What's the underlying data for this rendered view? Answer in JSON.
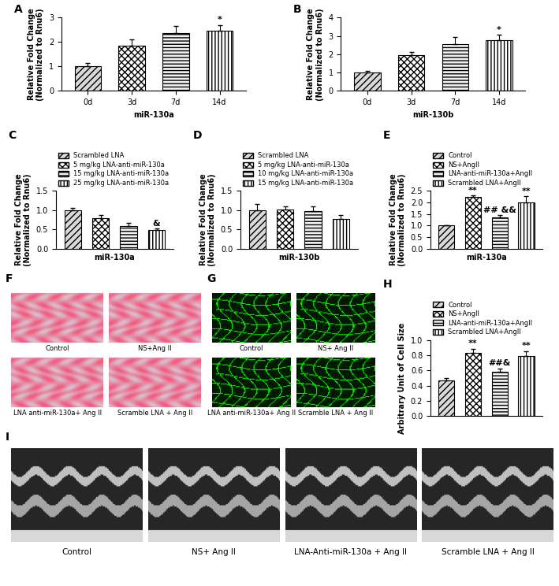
{
  "chart_data": [
    {
      "panel": "A",
      "type": "bar",
      "categories": [
        "0d",
        "3d",
        "7d",
        "14d"
      ],
      "values": [
        1.0,
        1.85,
        2.35,
        2.45
      ],
      "errors": [
        0.15,
        0.25,
        0.3,
        0.25
      ],
      "annotations": [
        null,
        null,
        null,
        "*"
      ],
      "xlabel": "miR-130a",
      "ylabel": "Relative Fold Change\n(Normalized to Rnu6)",
      "ylim": [
        0,
        3
      ],
      "yticks": [
        0,
        1,
        2,
        3
      ]
    },
    {
      "panel": "B",
      "type": "bar",
      "categories": [
        "0d",
        "3d",
        "7d",
        "14d"
      ],
      "values": [
        1.0,
        1.95,
        2.55,
        2.75
      ],
      "errors": [
        0.08,
        0.15,
        0.4,
        0.3
      ],
      "annotations": [
        null,
        null,
        null,
        "*"
      ],
      "xlabel": "miR-130b",
      "ylabel": "Relative Fold Change\n(Normalized to Rnu6)",
      "ylim": [
        0,
        4
      ],
      "yticks": [
        0,
        1,
        2,
        3,
        4
      ]
    },
    {
      "panel": "C",
      "type": "bar",
      "categories": [
        "Scrambled LNA",
        "5 mg/kg LNA-anti-miR-130a",
        "15 mg/kg LNA-anti-miR-130a",
        "25 mg/kg LNA-anti-miR-130a"
      ],
      "values": [
        1.0,
        0.8,
        0.58,
        0.48
      ],
      "errors": [
        0.05,
        0.08,
        0.08,
        0.04
      ],
      "annotations": [
        null,
        null,
        null,
        "&"
      ],
      "xlabel": "miR-130a",
      "ylabel": "Relative Fold Change\n(Normalized to Rnu6)",
      "ylim": [
        0,
        1.5
      ],
      "yticks": [
        {
          "value": 0,
          "label": "0.0"
        },
        {
          "value": 0.5,
          "label": "0.5"
        },
        {
          "value": 1.0,
          "label": "1.0"
        },
        {
          "value": 1.5,
          "label": "1.5"
        }
      ],
      "tick_labels": "y",
      "legend": "lower left"
    },
    {
      "panel": "D",
      "type": "bar",
      "categories": [
        "Scrambled LNA",
        "5 mg/kg LNA-anti-miR-130a",
        "10 mg/kg LNA-anti-miR-130a",
        "15 mg/kg LNA-anti-miR-130a"
      ],
      "values": [
        1.0,
        1.02,
        0.98,
        0.78
      ],
      "errors": [
        0.15,
        0.08,
        0.12,
        0.1
      ],
      "annotations": [
        null,
        null,
        null,
        null
      ],
      "xlabel": "miR-130b",
      "ylabel": "Relative Fold Change\n(Normalized to Rnu6)",
      "ylim": [
        0,
        1.5
      ],
      "yticks": [
        {
          "value": 0,
          "label": "0.0"
        },
        {
          "value": 0.5,
          "label": "0.5"
        },
        {
          "value": 1.0,
          "label": "1.0"
        },
        {
          "value": 1.5,
          "label": "1.5"
        }
      ],
      "tick_labels": "y",
      "legend": "lower left"
    },
    {
      "panel": "E",
      "type": "bar",
      "categories": [
        "Control",
        "NS+AngII",
        "LNA-anti-miR-130a+AngII",
        "Scrambled LNA+AngII"
      ],
      "values": [
        1.0,
        2.22,
        1.35,
        2.0
      ],
      "errors": [
        0.03,
        0.06,
        0.1,
        0.25
      ],
      "annotations": [
        null,
        "**",
        "## &&",
        "**"
      ],
      "xlabel": "miR-130a",
      "ylabel": "Relative Fold Change\n(Normalized to Rnu6)",
      "ylim": [
        0,
        2.5
      ],
      "yticks": [
        {
          "value": 0,
          "label": "0.0"
        },
        {
          "value": 0.5,
          "label": "0.5"
        },
        {
          "value": 1.0,
          "label": "1.0"
        },
        {
          "value": 1.5,
          "label": "1.5"
        },
        {
          "value": 2.0,
          "label": "2.0"
        },
        {
          "value": 2.5,
          "label": "2.5"
        }
      ],
      "tick_labels": "y",
      "legend": "lower left"
    },
    {
      "panel": "H",
      "type": "bar",
      "categories": [
        "Control",
        "NS+AngII",
        "LNA-anti-miR-130a+AngII",
        "Scrambled LNA+AngII"
      ],
      "values": [
        0.47,
        0.83,
        0.58,
        0.79
      ],
      "errors": [
        0.03,
        0.05,
        0.04,
        0.06
      ],
      "annotations": [
        null,
        "**",
        "##&",
        "**"
      ],
      "ylabel": "Arbitrary Unit of Cell Size",
      "ylim": [
        0,
        1.0
      ],
      "yticks": [
        {
          "value": 0,
          "label": "0.0"
        },
        {
          "value": 0.2,
          "label": "0.2"
        },
        {
          "value": 0.4,
          "label": "0.4"
        },
        {
          "value": 0.6,
          "label": "0.6"
        },
        {
          "value": 0.8,
          "label": "0.8"
        },
        {
          "value": 1.0,
          "label": "1.0"
        }
      ],
      "tick_labels": "y",
      "legend": "lower left"
    }
  ],
  "images": [
    {
      "panel": "F",
      "type": "image",
      "captions": [
        "Control",
        "NS+Ang II",
        "LNA anti-miR-130a+ Ang II",
        "Scramble LNA + Ang II"
      ]
    },
    {
      "panel": "G",
      "type": "image",
      "captions": [
        "Control",
        "NS+ Ang II",
        "LNA anti-miR-130a+ Ang II",
        "Scramble LNA + Ang II"
      ]
    },
    {
      "panel": "I",
      "type": "image",
      "captions": [
        "Control",
        "NS+ Ang II",
        "LNA-Anti-miR-130a + Ang II",
        "Scramble LNA + Ang II"
      ]
    }
  ]
}
